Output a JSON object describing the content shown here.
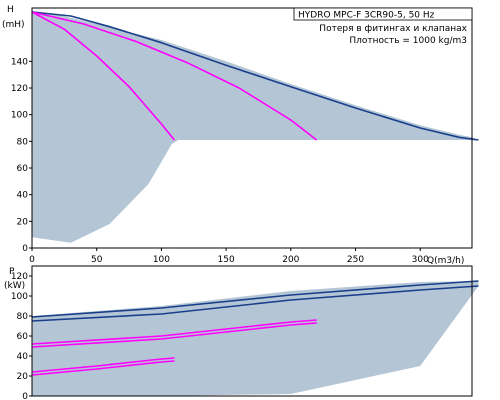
{
  "chart_data": [
    {
      "name": "H-Q",
      "type": "area",
      "ylabel": "H",
      "yunit": "(mH)",
      "xlabel": "Q(m3/h)",
      "xlim": [
        0,
        340
      ],
      "ylim": [
        0,
        180
      ],
      "x_ticks": [
        0,
        50,
        100,
        150,
        200,
        250,
        300
      ],
      "y_ticks": [
        0,
        20,
        40,
        60,
        80,
        100,
        120,
        140
      ],
      "grid": false,
      "legend": {
        "title": "HYDRO MPC-F 3CR90-5, 50 Hz",
        "lines": [
          "Потеря в фитингах и клапанах",
          "Плотность = 1000 kg/m3"
        ],
        "placement": "top-right"
      },
      "band_upper": {
        "x": [
          0,
          20,
          50,
          100,
          150,
          200,
          250,
          300,
          330,
          340,
          345
        ],
        "y": [
          178,
          175,
          168,
          156,
          140,
          123,
          107,
          92,
          85,
          83,
          81
        ]
      },
      "band_lower": {
        "x": [
          0,
          30,
          60,
          90,
          108,
          113
        ],
        "y": [
          8,
          4,
          18,
          48,
          78,
          81
        ]
      },
      "series": [
        {
          "x": [
            0,
            30,
            60,
            100,
            150,
            200,
            250,
            300,
            330,
            345
          ],
          "y": [
            177,
            174,
            166,
            154,
            137,
            121,
            105,
            90,
            83,
            81
          ],
          "color": "#1a3f8a"
        },
        {
          "x": [
            0,
            40,
            80,
            120,
            160,
            200,
            220
          ],
          "y": [
            177,
            168,
            155,
            139,
            120,
            96,
            81
          ],
          "color": "#ff00ff"
        },
        {
          "x": [
            0,
            25,
            50,
            75,
            100,
            110
          ],
          "y": [
            177,
            164,
            144,
            121,
            93,
            81
          ],
          "color": "#ff00ff"
        }
      ]
    },
    {
      "name": "P-Q",
      "type": "area",
      "ylabel": "P",
      "yunit": "(kW)",
      "xlim": [
        0,
        340
      ],
      "ylim": [
        0,
        130
      ],
      "x_ticks": [
        0,
        50,
        100,
        150,
        200,
        250,
        300
      ],
      "y_ticks": [
        0,
        20,
        40,
        60,
        80,
        100,
        120
      ],
      "grid": false,
      "band_upper": {
        "x": [
          0,
          100,
          200,
          300,
          345
        ],
        "y": [
          80,
          90,
          105,
          114,
          115
        ]
      },
      "band_lower": {
        "x": [
          30,
          100,
          200,
          300,
          345
        ],
        "y": [
          0,
          0,
          2,
          30,
          110
        ]
      },
      "series": [
        {
          "x": [
            0,
            100,
            200,
            300,
            345
          ],
          "y": [
            79,
            88,
            101,
            111,
            115
          ],
          "color": "#1a3f8a"
        },
        {
          "x": [
            0,
            100,
            200,
            300,
            345
          ],
          "y": [
            75,
            82,
            96,
            106,
            110
          ],
          "color": "#1a3f8a"
        },
        {
          "x": [
            0,
            100,
            200,
            220
          ],
          "y": [
            52,
            60,
            74,
            76
          ],
          "color": "#ff00ff"
        },
        {
          "x": [
            0,
            100,
            200,
            220
          ],
          "y": [
            49,
            57,
            71,
            73
          ],
          "color": "#ff00ff"
        },
        {
          "x": [
            0,
            50,
            100,
            110
          ],
          "y": [
            24,
            30,
            37,
            38
          ],
          "color": "#ff00ff"
        },
        {
          "x": [
            0,
            50,
            100,
            110
          ],
          "y": [
            21,
            27,
            34,
            35
          ],
          "color": "#ff00ff"
        }
      ]
    }
  ],
  "colors": {
    "band": "#b4c6d6",
    "primary_curve": "#1a3f8a",
    "secondary_curve": "#ff00ff",
    "frame": "#000000"
  }
}
